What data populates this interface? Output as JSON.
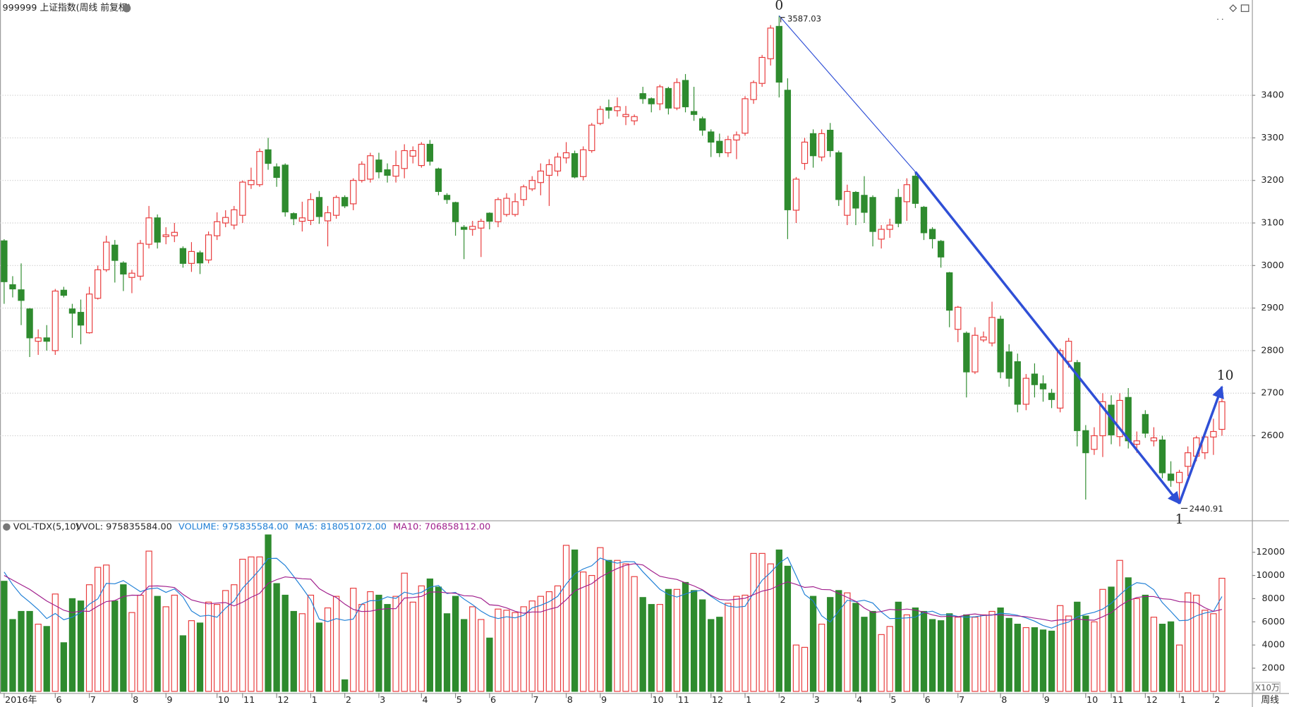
{
  "chart_data": [
    {
      "type": "candlestick",
      "title": "999999 上证指数(周线 前复权)",
      "period_label": "周线",
      "categories": [
        "2016年",
        null,
        null,
        null,
        null,
        null,
        "6",
        null,
        null,
        null,
        "7",
        null,
        null,
        null,
        null,
        "8",
        null,
        null,
        null,
        "9",
        null,
        null,
        null,
        null,
        null,
        "10",
        null,
        null,
        "11",
        null,
        null,
        null,
        "12",
        null,
        null,
        null,
        "1",
        null,
        null,
        null,
        "2",
        null,
        null,
        null,
        "3",
        null,
        null,
        null,
        null,
        "4",
        null,
        null,
        null,
        "5",
        null,
        null,
        null,
        "6",
        null,
        null,
        null,
        null,
        "7",
        null,
        null,
        null,
        "8",
        null,
        null,
        null,
        "9",
        null,
        null,
        null,
        null,
        null,
        "10",
        null,
        null,
        "11",
        null,
        null,
        null,
        "12",
        null,
        null,
        null,
        "1",
        null,
        null,
        null,
        "2",
        null,
        null,
        null,
        "3",
        null,
        null,
        null,
        null,
        "4",
        null,
        null,
        null,
        "5",
        null,
        null,
        null,
        "6",
        null,
        null,
        null,
        "7",
        null,
        null,
        null,
        null,
        "8",
        null,
        null,
        null,
        null,
        "9",
        null,
        null,
        null,
        null,
        "10",
        null,
        null,
        "11",
        null,
        null,
        null,
        "12",
        null,
        null,
        null,
        "1",
        null,
        null,
        null,
        "2",
        null
      ],
      "open": [
        3058,
        2955,
        2943,
        2898,
        2822,
        2830,
        2800,
        2942,
        2898,
        2890,
        2842,
        2923,
        2990,
        3048,
        3006,
        2972,
        2975,
        3050,
        3112,
        3068,
        3070,
        3040,
        3005,
        3030,
        3013,
        3070,
        3100,
        3095,
        3118,
        3190,
        3190,
        3272,
        3232,
        3236,
        3122,
        3104,
        3106,
        3160,
        3105,
        3118,
        3160,
        3145,
        3200,
        3203,
        3248,
        3225,
        3210,
        3228,
        3257,
        3235,
        3285,
        3227,
        3165,
        3148,
        3090,
        3085,
        3088,
        3123,
        3103,
        3120,
        3120,
        3155,
        3180,
        3195,
        3212,
        3222,
        3253,
        3263,
        3209,
        3270,
        3334,
        3371,
        3364,
        3350,
        3340,
        3404,
        3392,
        3380,
        3416,
        3370,
        3435,
        3362,
        3345,
        3314,
        3292,
        3265,
        3295,
        3311,
        3390,
        3428,
        3486,
        3562,
        3412,
        3130,
        3240,
        3310,
        3255,
        3318,
        3265,
        3118,
        3172,
        3165,
        3160,
        3062,
        3085,
        3160,
        3150,
        3210,
        3137,
        3085,
        3057,
        2983,
        2850,
        2841,
        2750,
        2825,
        2818,
        2874,
        2797,
        2774,
        2674,
        2745,
        2722,
        2700,
        2665,
        2775,
        2772,
        2612,
        2568,
        2600,
        2672,
        2598,
        2690,
        2580,
        2650,
        2588,
        2590,
        2510,
        2490,
        2528,
        2552,
        2560,
        2597,
        2615
      ],
      "high": [
        3062,
        2975,
        3005,
        2900,
        2850,
        2860,
        2945,
        2950,
        2910,
        2920,
        2950,
        3000,
        3070,
        3060,
        3010,
        2990,
        3060,
        3140,
        3120,
        3090,
        3100,
        3045,
        3055,
        3035,
        3080,
        3125,
        3130,
        3140,
        3200,
        3230,
        3275,
        3300,
        3240,
        3240,
        3125,
        3150,
        3170,
        3175,
        3140,
        3165,
        3165,
        3205,
        3245,
        3265,
        3265,
        3240,
        3270,
        3285,
        3280,
        3290,
        3295,
        3230,
        3170,
        3150,
        3095,
        3105,
        3110,
        3125,
        3160,
        3170,
        3170,
        3190,
        3210,
        3240,
        3250,
        3265,
        3290,
        3270,
        3280,
        3335,
        3375,
        3390,
        3395,
        3375,
        3355,
        3420,
        3395,
        3425,
        3420,
        3440,
        3450,
        3420,
        3350,
        3320,
        3310,
        3305,
        3315,
        3398,
        3435,
        3495,
        3565,
        3587.03,
        3440,
        3208,
        3300,
        3320,
        3320,
        3335,
        3270,
        3190,
        3175,
        3210,
        3165,
        3095,
        3110,
        3180,
        3205,
        3220,
        3140,
        3090,
        3060,
        2985,
        2905,
        2845,
        2855,
        2845,
        2915,
        2882,
        2815,
        2793,
        2745,
        2770,
        2742,
        2710,
        2805,
        2830,
        2778,
        2625,
        2620,
        2700,
        2695,
        2700,
        2712,
        2610,
        2660,
        2620,
        2600,
        2540,
        2520,
        2575,
        2600,
        2610,
        2640,
        2715
      ],
      "low": [
        2910,
        2925,
        2860,
        2785,
        2790,
        2800,
        2790,
        2925,
        2830,
        2815,
        2840,
        2920,
        2985,
        2960,
        2940,
        2935,
        2965,
        3040,
        3040,
        3050,
        3055,
        2995,
        2985,
        2980,
        3005,
        3060,
        3090,
        3085,
        3100,
        3180,
        3185,
        3225,
        3185,
        3115,
        3095,
        3080,
        3095,
        3098,
        3045,
        3110,
        3135,
        3130,
        3195,
        3195,
        3205,
        3195,
        3195,
        3205,
        3240,
        3230,
        3235,
        3165,
        3145,
        3070,
        3015,
        3070,
        3020,
        3085,
        3090,
        3115,
        3115,
        3140,
        3175,
        3165,
        3140,
        3210,
        3240,
        3205,
        3200,
        3265,
        3330,
        3345,
        3350,
        3330,
        3330,
        3380,
        3360,
        3365,
        3355,
        3365,
        3360,
        3340,
        3305,
        3255,
        3255,
        3255,
        3250,
        3305,
        3380,
        3420,
        3470,
        3395,
        3062,
        3100,
        3225,
        3230,
        3245,
        3255,
        3140,
        3095,
        3095,
        3100,
        3045,
        3040,
        3065,
        3090,
        3105,
        3135,
        3060,
        3040,
        2995,
        2855,
        2820,
        2690,
        2745,
        2820,
        2810,
        2735,
        2715,
        2655,
        2660,
        2690,
        2680,
        2665,
        2655,
        2760,
        2575,
        2450,
        2555,
        2550,
        2580,
        2575,
        2570,
        2560,
        2595,
        2575,
        2500,
        2480,
        2440.91,
        2505,
        2540,
        2545,
        2555,
        2600
      ],
      "close": [
        2962,
        2945,
        2918,
        2830,
        2830,
        2822,
        2940,
        2930,
        2888,
        2860,
        2933,
        2990,
        3055,
        3012,
        2980,
        2982,
        3052,
        3112,
        3055,
        3072,
        3078,
        3005,
        3033,
        3006,
        3072,
        3103,
        3113,
        3131,
        3196,
        3200,
        3268,
        3240,
        3207,
        3126,
        3110,
        3112,
        3155,
        3115,
        3124,
        3160,
        3140,
        3200,
        3238,
        3258,
        3220,
        3212,
        3235,
        3270,
        3270,
        3285,
        3245,
        3174,
        3155,
        3103,
        3085,
        3092,
        3104,
        3104,
        3155,
        3158,
        3150,
        3185,
        3200,
        3222,
        3237,
        3255,
        3265,
        3208,
        3272,
        3330,
        3367,
        3365,
        3373,
        3355,
        3350,
        3392,
        3380,
        3420,
        3370,
        3430,
        3373,
        3355,
        3318,
        3290,
        3265,
        3296,
        3307,
        3392,
        3430,
        3489,
        3558,
        3431,
        3131,
        3203,
        3290,
        3258,
        3310,
        3270,
        3155,
        3174,
        3135,
        3125,
        3080,
        3085,
        3095,
        3099,
        3190,
        3146,
        3077,
        3063,
        3020,
        2895,
        2902,
        2750,
        2836,
        2832,
        2878,
        2750,
        2735,
        2674,
        2735,
        2720,
        2710,
        2685,
        2800,
        2822,
        2612,
        2560,
        2600,
        2680,
        2602,
        2683,
        2588,
        2588,
        2606,
        2595,
        2513,
        2495,
        2514,
        2560,
        2595,
        2597,
        2610,
        2680
      ],
      "up_color": "#e8393a",
      "down_color": "#2e8b2e",
      "line_color": "#2f4fd6",
      "wave_labels": [
        "0",
        "1",
        "10"
      ],
      "ylim": [
        2403,
        3624
      ],
      "yticks": [
        2600,
        2700,
        2800,
        2900,
        3000,
        3100,
        3200,
        3300,
        3400
      ],
      "grid": true
    },
    {
      "type": "volume",
      "title": "VOL-TDX(5,10)",
      "unit_label": "X10万",
      "legend": [
        {
          "text": "VVOL: 975835584.00",
          "color": "#222222"
        },
        {
          "text": "VOLUME: 975835584.00",
          "color": "#1e7fd6"
        },
        {
          "text": "MA5: 818051072.00",
          "color": "#1e7fd6"
        },
        {
          "text": "MA10: 706858112.00",
          "color": "#a01e8c"
        }
      ],
      "values": [
        9500,
        6200,
        6900,
        6900,
        5800,
        5600,
        8400,
        4200,
        8000,
        7800,
        9200,
        10700,
        10900,
        7800,
        9200,
        6800,
        8300,
        12100,
        8200,
        7300,
        8300,
        4800,
        6100,
        5900,
        7700,
        7500,
        8700,
        9200,
        11400,
        11600,
        11600,
        13500,
        9300,
        8300,
        6900,
        6700,
        8300,
        5900,
        7200,
        8200,
        1000,
        8900,
        7500,
        8600,
        8300,
        7500,
        8200,
        10200,
        7700,
        9100,
        9700,
        9000,
        6700,
        8200,
        6200,
        7300,
        6200,
        4600,
        7100,
        7000,
        6800,
        7300,
        7800,
        8200,
        8600,
        9100,
        12600,
        12200,
        10300,
        10000,
        12400,
        11300,
        11300,
        11000,
        9900,
        8100,
        7500,
        7500,
        8800,
        8800,
        9400,
        8700,
        7900,
        6200,
        6400,
        7600,
        8200,
        8300,
        11900,
        11900,
        11000,
        12200,
        10800,
        4000,
        3800,
        8200,
        5800,
        8100,
        8700,
        8500,
        7600,
        6400,
        6900,
        4900,
        5600,
        7700,
        6600,
        7200,
        6900,
        6200,
        6100,
        6700,
        6400,
        6600,
        6400,
        6600,
        6900,
        7200,
        6300,
        5800,
        5500,
        5500,
        5300,
        5200,
        7400,
        6500,
        7700,
        6500,
        6000,
        8800,
        9000,
        11300,
        9800,
        8000,
        8300,
        6400,
        5800,
        6000,
        4000,
        8500,
        8300,
        7000,
        6700,
        9758.35584
      ],
      "series": [
        {
          "name": "MA5",
          "color": "#1e7fd6",
          "values": [
            10300,
            9200,
            8300,
            7700,
            7060,
            6280,
            6720,
            6180,
            6400,
            6800,
            7520,
            7980,
            9320,
            9280,
            9560,
            9080,
            8600,
            8840,
            8920,
            8540,
            8840,
            8140,
            6940,
            6480,
            6560,
            6400,
            7180,
            7800,
            8900,
            9680,
            10500,
            11460,
            11480,
            10860,
            9920,
            8940,
            7900,
            6240,
            6020,
            6280,
            6120,
            6240,
            7540,
            7820,
            7840,
            8160,
            8020,
            8560,
            8380,
            8540,
            8980,
            9140,
            8440,
            8540,
            7960,
            7480,
            6920,
            6500,
            6280,
            6440,
            6340,
            6560,
            7200,
            7420,
            7740,
            8200,
            9260,
            10140,
            10560,
            10840,
            11500,
            11240,
            11060,
            11200,
            11180,
            10320,
            9560,
            8800,
            8360,
            8140,
            8400,
            8640,
            8720,
            8200,
            7720,
            7360,
            7260,
            7340,
            8480,
            9580,
            10260,
            11060,
            11560,
            9980,
            8360,
            7800,
            6520,
            5980,
            6920,
            7860,
            7740,
            7860,
            7620,
            6860,
            6280,
            6300,
            6340,
            6400,
            6800,
            6920,
            6600,
            6620,
            6460,
            6400,
            6440,
            6540,
            6580,
            6740,
            6680,
            6560,
            6340,
            6060,
            5680,
            5460,
            5780,
            5980,
            6420,
            6660,
            6820,
            7100,
            7600,
            8320,
            8980,
            9380,
            9280,
            8760,
            7660,
            6900,
            6100,
            6140,
            6520,
            6760,
            6900,
            8180.51072
          ]
        },
        {
          "name": "MA10",
          "color": "#a01e8c",
          "values": [
            10000,
            9600,
            9200,
            8800,
            8300,
            7800,
            7400,
            7000,
            6800,
            6930,
            6900,
            7350,
            7750,
            7840,
            8180,
            8300,
            8290,
            9080,
            9100,
            9050,
            8960,
            8370,
            7890,
            7700,
            7550,
            7620,
            7660,
            7370,
            7690,
            8120,
            8450,
            9320,
            9640,
            9880,
            9800,
            9720,
            9680,
            8860,
            8440,
            8100,
            7530,
            7070,
            6890,
            6920,
            7060,
            7140,
            7130,
            8050,
            8100,
            8190,
            8570,
            8580,
            8500,
            8460,
            8250,
            8230,
            8030,
            7470,
            7410,
            7200,
            6910,
            6740,
            6850,
            6850,
            7090,
            7270,
            7910,
            8670,
            8990,
            9290,
            9850,
            10250,
            10600,
            10880,
            11010,
            10910,
            10400,
            9930,
            9780,
            9660,
            9360,
            9100,
            8760,
            8280,
            7930,
            7880,
            7950,
            8030,
            8340,
            8650,
            8810,
            9160,
            9450,
            9230,
            8970,
            9030,
            8790,
            8770,
            8450,
            8110,
            7770,
            7190,
            6800,
            6890,
            7070,
            7020,
            7100,
            7010,
            6830,
            6600,
            6450,
            6480,
            6430,
            6600,
            6680,
            6570,
            6600,
            6600,
            6540,
            6500,
            6440,
            6320,
            6210,
            6070,
            6170,
            6160,
            6240,
            6170,
            6140,
            6440,
            6790,
            7370,
            7820,
            8100,
            8190,
            8180,
            7990,
            7940,
            7740,
            7710,
            7640,
            7210,
            6900,
            7068.58112
          ]
        }
      ],
      "ylim": [
        0,
        14680
      ],
      "yticks": [
        2000,
        4000,
        6000,
        8000,
        10000,
        12000
      ],
      "grid": false
    }
  ]
}
